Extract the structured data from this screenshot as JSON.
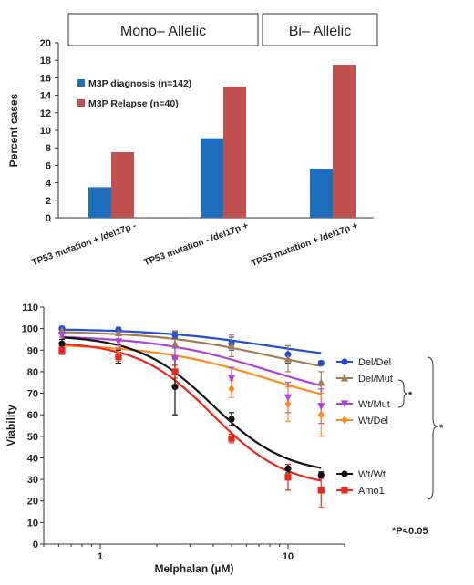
{
  "chart_data": [
    {
      "type": "bar",
      "group_headers": [
        "Mono– Allelic",
        "Bi– Allelic"
      ],
      "categories": [
        "TP53 mutation + /del17p -",
        "TP53 mutation - /del17p +",
        "TP53 mutation + /del17p +"
      ],
      "series": [
        {
          "name": "M3P diagnosis (n=142)",
          "values": [
            3.5,
            9.1,
            5.6
          ],
          "color": "#1f6fbf"
        },
        {
          "name": "M3P Relapse (n=40)",
          "values": [
            7.5,
            15.0,
            17.5
          ],
          "color": "#c0504d"
        }
      ],
      "ylabel": "Percent cases",
      "ylim": [
        0,
        20
      ],
      "yticks": [
        "0",
        "2",
        "4",
        "6",
        "8",
        "10",
        "12",
        "14",
        "16",
        "18",
        "20"
      ],
      "legend_position": "top-left",
      "grid": false
    },
    {
      "type": "line",
      "xscale": "log",
      "xlabel": "Melphalan (µM)",
      "ylabel": "Viability",
      "xlim": [
        0.5,
        20
      ],
      "ylim": [
        0,
        110
      ],
      "xticks": [
        "1",
        "10"
      ],
      "yticks": [
        "0",
        "10",
        "20",
        "30",
        "40",
        "50",
        "60",
        "70",
        "80",
        "90",
        "100",
        "110"
      ],
      "x": [
        0.625,
        1.25,
        2.5,
        5,
        10,
        15
      ],
      "series": [
        {
          "name": "Del/Del",
          "values": [
            100,
            99.5,
            97,
            93,
            88,
            84
          ],
          "err": [
            1,
            1,
            1.5,
            3,
            4,
            1
          ],
          "fit": [
            100,
            98,
            90,
            84
          ],
          "color": "#1f4fd6",
          "marker": "circle"
        },
        {
          "name": "Del/Mut",
          "values": [
            99,
            98,
            93,
            92,
            86,
            75
          ],
          "err": [
            1,
            1,
            6,
            5,
            6,
            5
          ],
          "fit": [
            99,
            97.5,
            86,
            76
          ],
          "color": "#a67c52",
          "marker": "triangle-up"
        },
        {
          "name": "Wt/Mut",
          "values": [
            97,
            94,
            86,
            77,
            68,
            64
          ],
          "err": [
            1,
            3,
            5,
            5,
            7,
            8
          ],
          "fit": [
            97,
            90,
            69,
            64
          ],
          "color": "#b040e0",
          "marker": "triangle-down"
        },
        {
          "name": "Wt/Del",
          "values": [
            92,
            88,
            80,
            72,
            65,
            60
          ],
          "err": [
            3,
            4,
            6,
            4,
            8,
            10
          ],
          "fit": [
            93,
            82,
            63,
            60
          ],
          "color": "#ff8c1a",
          "marker": "diamond"
        },
        {
          "name": "Wt/Wt",
          "values": [
            93,
            87,
            73,
            58,
            35,
            32
          ],
          "err": [
            2,
            3,
            13,
            3,
            2,
            1.5
          ],
          "fit": [
            97,
            82,
            35,
            32
          ],
          "color": "#111111",
          "marker": "circle"
        },
        {
          "name": "Amo1",
          "values": [
            90,
            87,
            80,
            49,
            31,
            25
          ],
          "err": [
            2,
            2,
            3,
            2,
            6,
            8
          ],
          "fit": [
            94,
            79,
            29,
            26
          ],
          "color": "#e8261b",
          "marker": "square"
        }
      ],
      "annotations": [
        "*",
        "*",
        "*P<0.05"
      ],
      "legend_position": "right",
      "grid": false
    }
  ]
}
